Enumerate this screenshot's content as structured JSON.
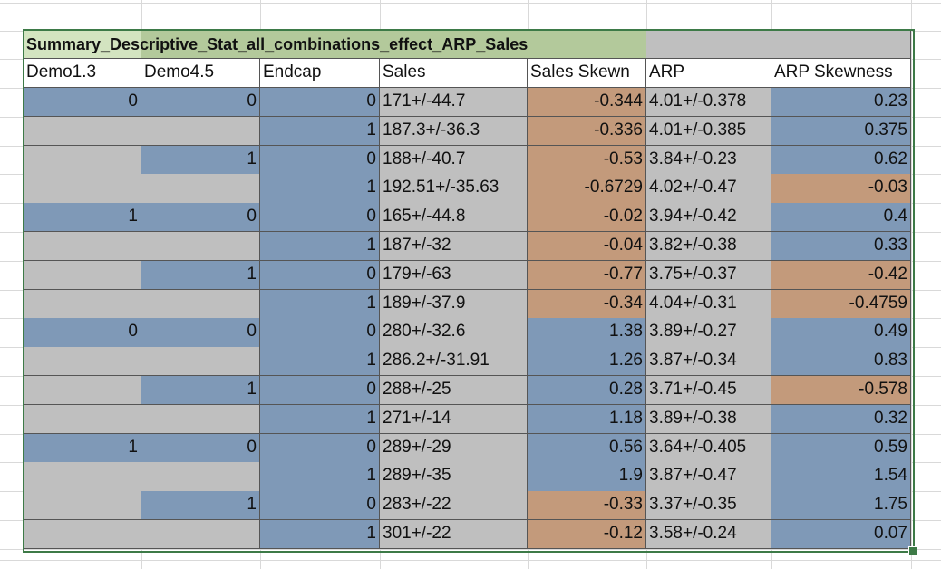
{
  "table": {
    "title": "Summary_Descriptive_Stat_all_combinations_effect_ARP_Sales",
    "header": [
      "Demo1.3",
      "Demo4.5",
      "Endcap",
      "Sales",
      "Sales Skewn",
      "ARP",
      "ARP Skewness"
    ],
    "rows": [
      [
        0,
        0,
        0,
        "171+/-44.7",
        -0.344,
        "4.01+/-0.378",
        0.23
      ],
      [
        null,
        null,
        1,
        "187.3+/-36.3",
        -0.336,
        "4.01+/-0.385",
        0.375
      ],
      [
        null,
        1,
        0,
        "188+/-40.7",
        -0.53,
        "3.84+/-0.23",
        0.62
      ],
      [
        null,
        null,
        1,
        "192.51+/-35.63",
        -0.6729,
        "4.02+/-0.47",
        -0.03
      ],
      [
        1,
        0,
        0,
        "165+/-44.8",
        -0.02,
        "3.94+/-0.42",
        0.4
      ],
      [
        null,
        null,
        1,
        "187+/-32",
        -0.04,
        "3.82+/-0.38",
        0.33
      ],
      [
        null,
        1,
        0,
        "179+/-63",
        -0.77,
        "3.75+/-0.37",
        -0.42
      ],
      [
        null,
        null,
        1,
        "189+/-37.9",
        -0.34,
        "4.04+/-0.31",
        -0.4759
      ],
      [
        0,
        0,
        0,
        "280+/-32.6",
        1.38,
        "3.89+/-0.27",
        0.49
      ],
      [
        null,
        null,
        1,
        "286.2+/-31.91",
        1.26,
        "3.87+/-0.34",
        0.83
      ],
      [
        null,
        1,
        0,
        "288+/-25",
        0.28,
        "3.71+/-0.45",
        -0.578
      ],
      [
        null,
        null,
        1,
        "271+/-14",
        1.18,
        "3.89+/-0.38",
        0.32
      ],
      [
        1,
        0,
        0,
        "289+/-29",
        0.56,
        "3.64+/-0.405",
        0.59
      ],
      [
        null,
        null,
        1,
        "289+/-35",
        1.9,
        "3.87+/-0.47",
        1.54
      ],
      [
        null,
        1,
        0,
        "283+/-22",
        -0.33,
        "3.37+/-0.35",
        1.75
      ],
      [
        null,
        null,
        1,
        "301+/-22",
        -0.12,
        "3.58+/-0.24",
        0.07
      ]
    ]
  }
}
